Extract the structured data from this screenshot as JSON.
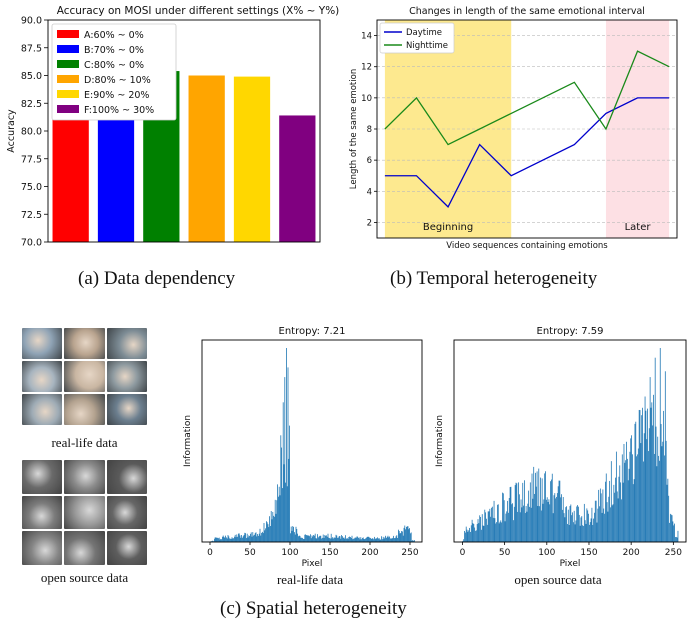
{
  "captions": {
    "a": "(a) Data dependency",
    "b": "(b) Temporal heterogeneity",
    "c": "(c) Spatial heterogeneity",
    "real_life_data": "real-life data",
    "open_source_data": "open source data"
  },
  "chart_data": [
    {
      "id": "a",
      "type": "bar",
      "title": "Accuracy on MOSI under different settings (X% ~ Y%)",
      "xlabel": "",
      "ylabel": "Accuracy",
      "ylim": [
        70.0,
        90.0
      ],
      "yticks": [
        "70.0",
        "72.5",
        "75.0",
        "77.5",
        "80.0",
        "82.5",
        "85.0",
        "87.5",
        "90.0"
      ],
      "legend_position": "top-left",
      "categories": [
        "A",
        "B",
        "C",
        "D",
        "E",
        "F"
      ],
      "labels": [
        "A:60% ~ 0%",
        "B:70% ~ 0%",
        "C:80% ~ 0%",
        "D:80% ~ 10%",
        "E:90% ~ 20%",
        "F:100% ~ 30%"
      ],
      "values": [
        82.3,
        83.8,
        85.4,
        85.0,
        84.9,
        81.4
      ],
      "colors": [
        "#ff0000",
        "#0000ff",
        "#008000",
        "#ffa500",
        "#ffd700",
        "#800080"
      ]
    },
    {
      "id": "b",
      "type": "line",
      "title": "Changes in length of the same emotional interval",
      "xlabel": "Video sequences containing emotions",
      "ylabel": "Length of the same emotion",
      "ylim": [
        1,
        15
      ],
      "yticks": [
        "2",
        "4",
        "6",
        "8",
        "10",
        "12",
        "14"
      ],
      "legend_position": "top-left",
      "grid": true,
      "regions": [
        {
          "label": "Beginning",
          "color": "#fde98f",
          "x_start": 0,
          "x_end": 4
        },
        {
          "label": "Later",
          "color": "#fde0e4",
          "x_start": 7,
          "x_end": 9
        }
      ],
      "series": [
        {
          "name": "Daytime",
          "color": "#0000cc",
          "x": [
            0,
            1,
            2,
            3,
            4,
            6,
            7,
            8,
            9
          ],
          "values": [
            5,
            5,
            3,
            7,
            5,
            7,
            9,
            10,
            10
          ]
        },
        {
          "name": "Nighttime",
          "color": "#1a8a1a",
          "x": [
            0,
            1,
            2,
            3,
            4,
            6,
            7,
            8,
            9
          ],
          "values": [
            8,
            10,
            7,
            8,
            9,
            11,
            8,
            13,
            12
          ]
        }
      ]
    },
    {
      "id": "c1",
      "type": "bar",
      "title": "Entropy: 7.21",
      "xlabel": "Pixel",
      "ylabel": "Information",
      "xlim": [
        -10,
        265
      ],
      "xticks": [
        "0",
        "50",
        "100",
        "150",
        "200",
        "250"
      ],
      "color": "#1f77b4",
      "peaks": [
        {
          "x": 88,
          "height": 0.55
        },
        {
          "x": 91,
          "height": 0.72
        },
        {
          "x": 93,
          "height": 0.85
        },
        {
          "x": 95,
          "height": 1.0
        },
        {
          "x": 97,
          "height": 0.9
        },
        {
          "x": 99,
          "height": 0.6
        }
      ]
    },
    {
      "id": "c2",
      "type": "bar",
      "title": "Entropy: 7.59",
      "xlabel": "Pixel",
      "ylabel": "Information",
      "xlim": [
        -10,
        265
      ],
      "xticks": [
        "0",
        "50",
        "100",
        "150",
        "200",
        "250"
      ],
      "color": "#1f77b4",
      "peaks": [
        {
          "x": 200,
          "height": 0.55
        },
        {
          "x": 205,
          "height": 0.62
        },
        {
          "x": 210,
          "height": 0.68
        },
        {
          "x": 216,
          "height": 0.75
        },
        {
          "x": 222,
          "height": 0.85
        },
        {
          "x": 228,
          "height": 0.95
        },
        {
          "x": 234,
          "height": 1.0
        },
        {
          "x": 240,
          "height": 0.88
        }
      ]
    }
  ],
  "image_grids": {
    "real_life": {
      "colors": [
        "#8fa3b5",
        "#b9a48f",
        "#7d8c95",
        "#a7b4bf",
        "#c9b6a2",
        "#8e9aa0",
        "#9eabb5",
        "#b3a28f",
        "#6c7f8f"
      ]
    },
    "open_source": {
      "colors": [
        "#6a6a6a",
        "#8a8a8a",
        "#5a5a5a",
        "#7c7c7c",
        "#9a9a9a",
        "#666666",
        "#858585",
        "#747474",
        "#5e5e5e"
      ]
    }
  }
}
